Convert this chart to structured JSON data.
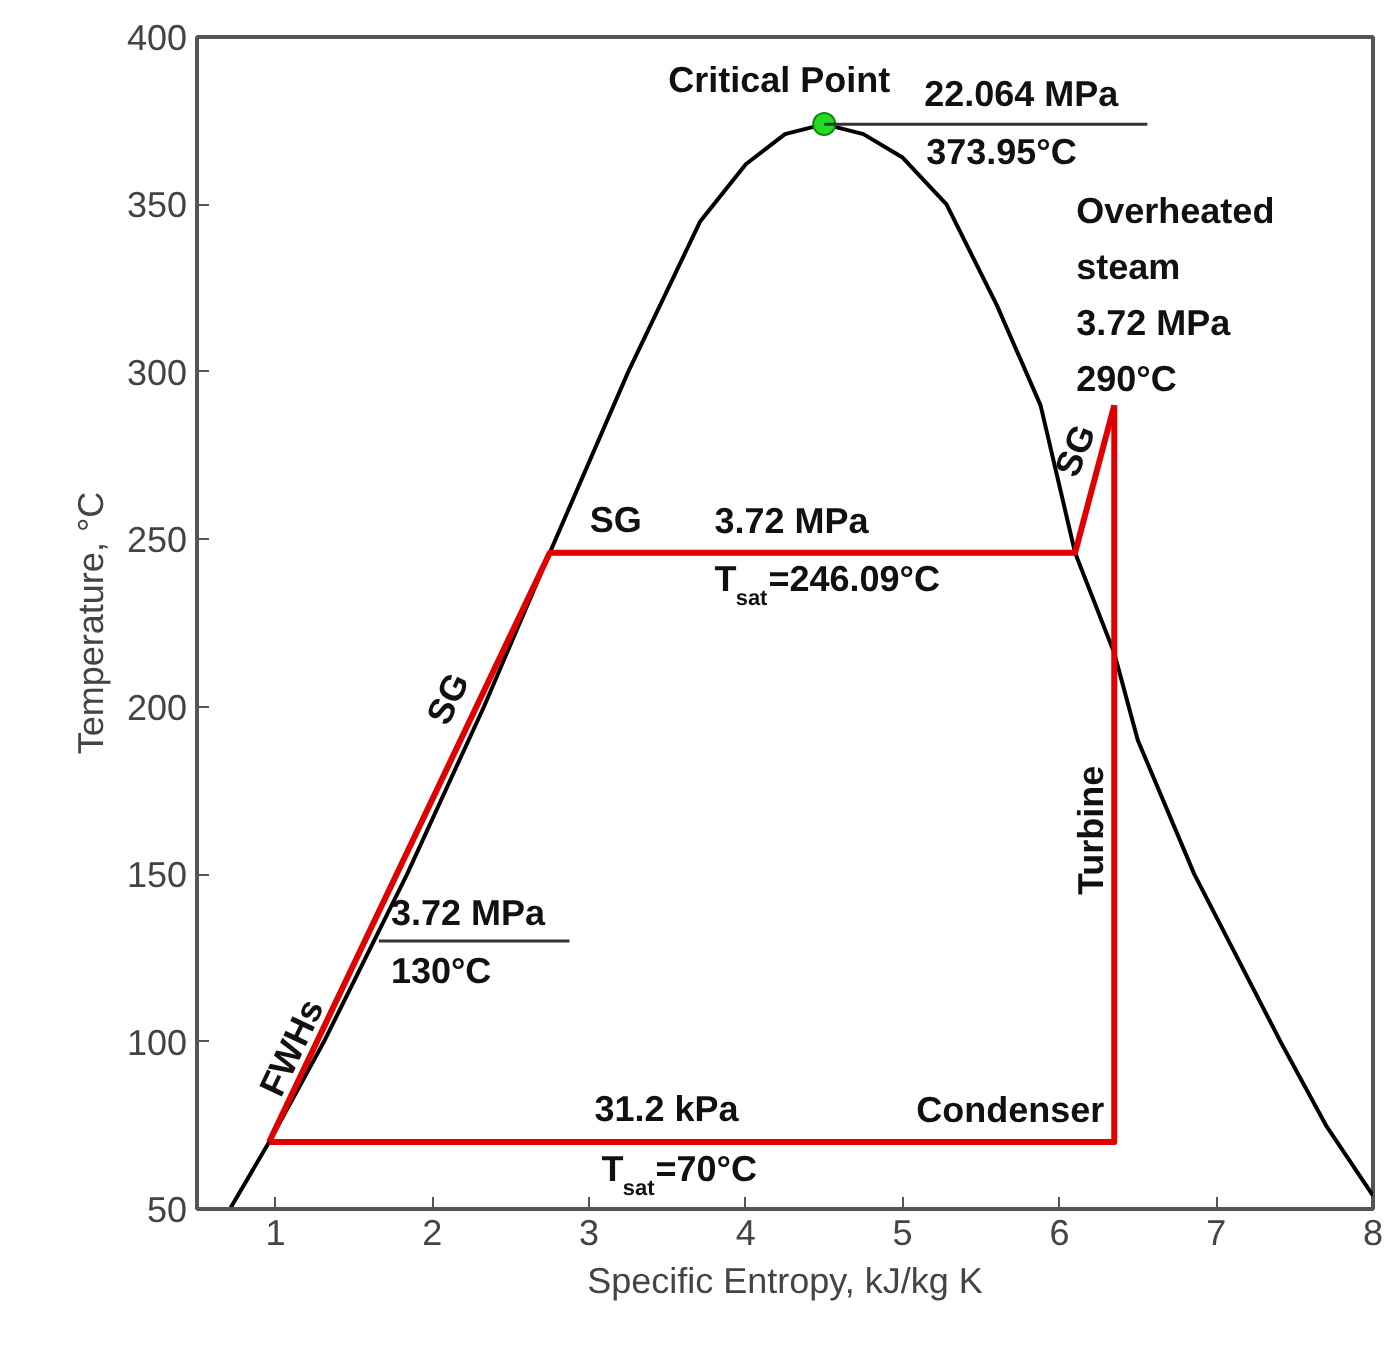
{
  "chart_data": {
    "type": "line",
    "xlabel": "Specific Entropy, kJ/kg K",
    "ylabel": "Temperature, °C",
    "xlim": [
      0.5,
      8
    ],
    "ylim": [
      50,
      400
    ],
    "xticks": [
      1,
      2,
      3,
      4,
      5,
      6,
      7,
      8
    ],
    "yticks": [
      50,
      100,
      150,
      200,
      250,
      300,
      350,
      400
    ],
    "grid": false,
    "series": [
      {
        "color": "#000000",
        "x": [
          0.71,
          0.96,
          1.31,
          1.84,
          2.33,
          2.75,
          3.25,
          3.71,
          4.0,
          4.25,
          4.5,
          4.75,
          5.0,
          5.28,
          5.6,
          5.88,
          6.1,
          6.35,
          6.5,
          6.86,
          7.41,
          7.7,
          8.0
        ],
        "values": [
          50,
          70,
          100,
          150,
          200,
          246,
          300,
          345,
          362,
          371,
          374,
          371,
          364,
          350,
          320,
          290,
          246,
          216,
          190,
          150,
          100,
          75,
          54
        ]
      },
      {
        "color": "#e00000",
        "x": [
          0.96,
          2.75,
          6.1,
          6.35
        ],
        "values": [
          70,
          246,
          246,
          290
        ]
      },
      {
        "color": "#e00000",
        "x": [
          0.96,
          6.35,
          6.35
        ],
        "values": [
          70,
          70,
          290
        ]
      },
      {
        "type": "scatter",
        "color": "#22dd22",
        "marker": "circle",
        "x": [
          4.5
        ],
        "values": [
          374
        ]
      }
    ],
    "annotations": [
      {
        "text": "Critical Point",
        "x": 4.5,
        "y": 373.95
      },
      {
        "text": "22.064 MPa",
        "x": 4.5,
        "y": 373.95
      },
      {
        "text": "373.95°C",
        "x": 4.5,
        "y": 373.95
      },
      {
        "text": "Overheated\nsteam\n3.72 MPa\n290°C",
        "x": 6.35,
        "y": 290
      },
      {
        "text": "SG",
        "x": 2.75,
        "y": 246.09
      },
      "3.72 MPa",
      "T$_{sat}$=246.09°C",
      "SG",
      {
        "text": "SG",
        "x": 2.28,
        "y": 200
      },
      {
        "text": "FWHs",
        "x": 1.27,
        "y": 100
      },
      {
        "text": "3.72 MPa",
        "x": 1.66,
        "y": 130
      },
      {
        "text": "130°C",
        "x": 1.66,
        "y": 130
      },
      "Turbine",
      {
        "text": "Condenser",
        "x": 6.35,
        "y": 70
      },
      "31.2 kPa",
      "T$_{sat}$=70°C"
    ]
  }
}
